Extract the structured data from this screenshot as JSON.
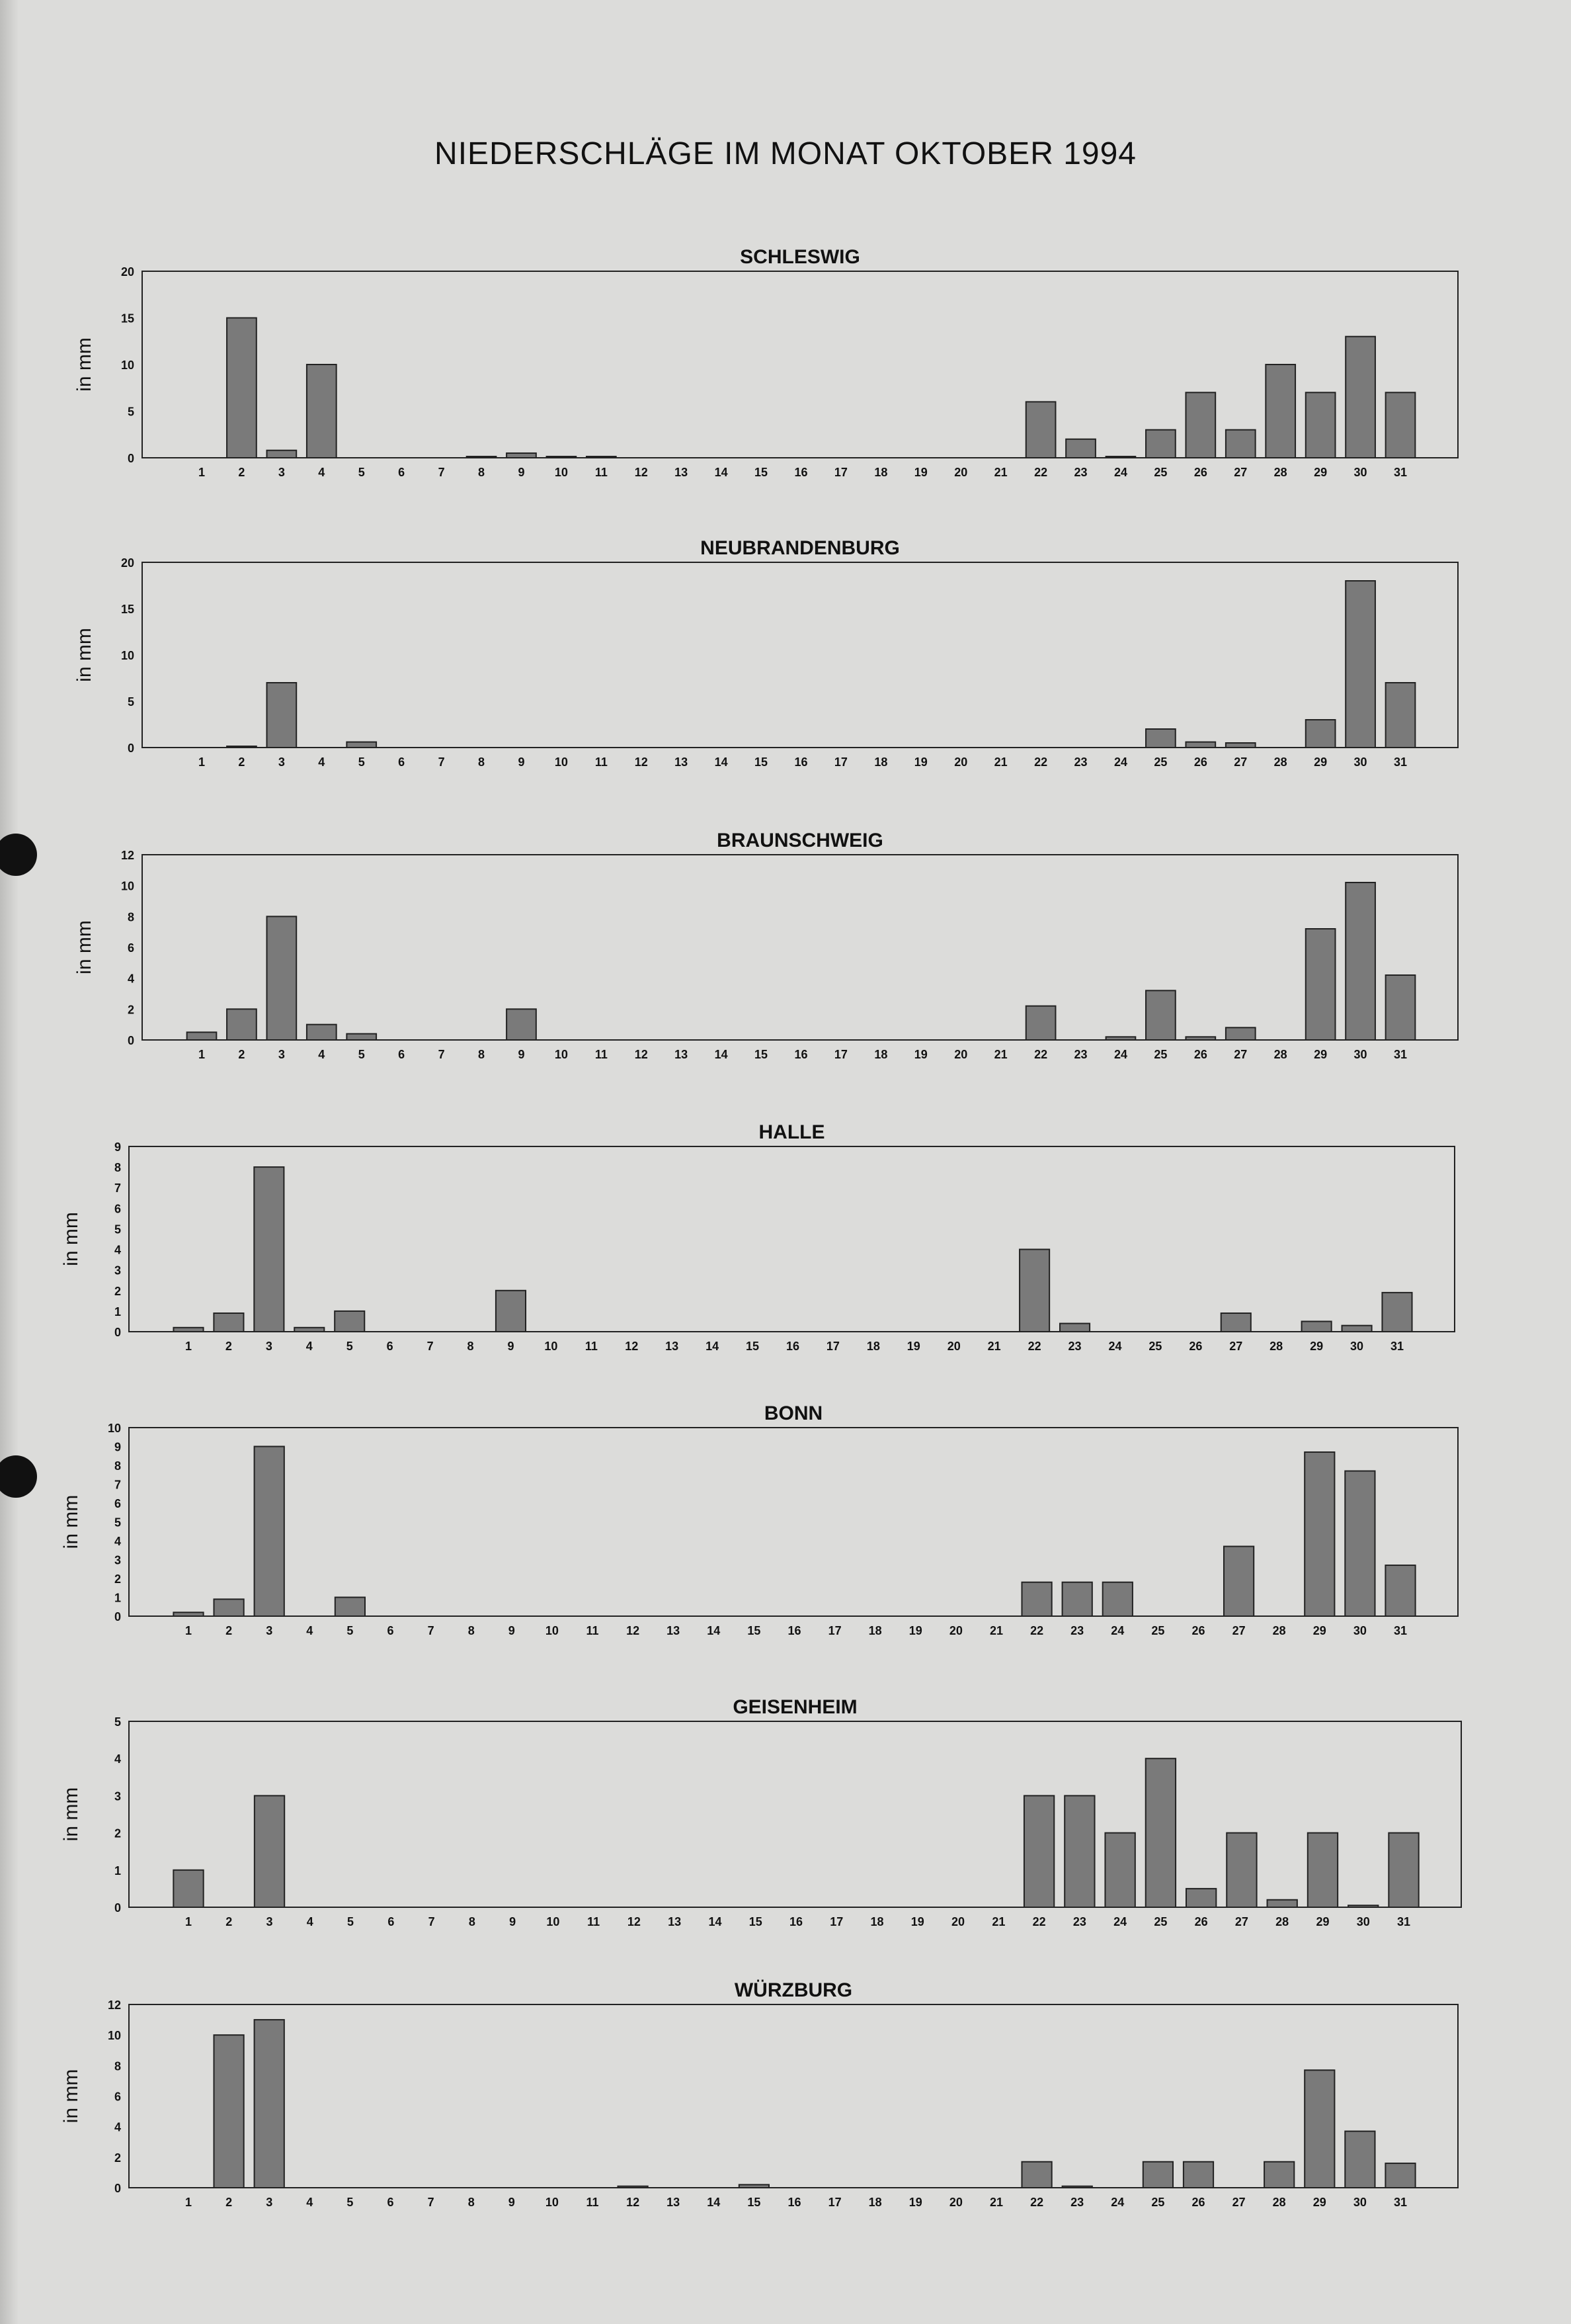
{
  "title": "NIEDERSCHLÄGE IM MONAT OKTOBER 1994",
  "bar_color": "#7a7a7a",
  "chart_data": [
    {
      "type": "bar",
      "title": "SCHLESWIG",
      "ylabel": "in mm",
      "ylim": [
        0,
        20
      ],
      "yticks": [
        0,
        5,
        10,
        15,
        20
      ],
      "categories": [
        "1",
        "2",
        "3",
        "4",
        "5",
        "6",
        "7",
        "8",
        "9",
        "10",
        "11",
        "12",
        "13",
        "14",
        "15",
        "16",
        "17",
        "18",
        "19",
        "20",
        "21",
        "22",
        "23",
        "24",
        "25",
        "26",
        "27",
        "28",
        "29",
        "30",
        "31"
      ],
      "values": [
        0,
        15,
        0.8,
        10,
        0,
        0,
        0,
        0.1,
        0.5,
        0.1,
        0.1,
        0,
        0,
        0,
        0,
        0,
        0,
        0,
        0,
        0,
        0,
        6,
        2,
        0.1,
        3,
        7,
        3,
        10,
        7,
        13,
        7
      ]
    },
    {
      "type": "bar",
      "title": "NEUBRANDENBURG",
      "ylabel": "in mm",
      "ylim": [
        0,
        20
      ],
      "yticks": [
        0,
        5,
        10,
        15,
        20
      ],
      "categories": [
        "1",
        "2",
        "3",
        "4",
        "5",
        "6",
        "7",
        "8",
        "9",
        "10",
        "11",
        "12",
        "13",
        "14",
        "15",
        "16",
        "17",
        "18",
        "19",
        "20",
        "21",
        "22",
        "23",
        "24",
        "25",
        "26",
        "27",
        "28",
        "29",
        "30",
        "31"
      ],
      "values": [
        0,
        0.1,
        7,
        0,
        0.6,
        0,
        0,
        0,
        0,
        0,
        0,
        0,
        0,
        0,
        0,
        0,
        0,
        0,
        0,
        0,
        0,
        0,
        0,
        0,
        2,
        0.6,
        0.5,
        0,
        3,
        18,
        7
      ]
    },
    {
      "type": "bar",
      "title": "BRAUNSCHWEIG",
      "ylabel": "in mm",
      "ylim": [
        0,
        12
      ],
      "yticks": [
        0,
        2,
        4,
        6,
        8,
        10,
        12
      ],
      "categories": [
        "1",
        "2",
        "3",
        "4",
        "5",
        "6",
        "7",
        "8",
        "9",
        "10",
        "11",
        "12",
        "13",
        "14",
        "15",
        "16",
        "17",
        "18",
        "19",
        "20",
        "21",
        "22",
        "23",
        "24",
        "25",
        "26",
        "27",
        "28",
        "29",
        "30",
        "31"
      ],
      "values": [
        0.5,
        2,
        8,
        1,
        0.4,
        0,
        0,
        0,
        2,
        0,
        0,
        0,
        0,
        0,
        0,
        0,
        0,
        0,
        0,
        0,
        0,
        2.2,
        0,
        0.2,
        3.2,
        0.2,
        0.8,
        0,
        7.2,
        10.2,
        4.2
      ]
    },
    {
      "type": "bar",
      "title": "HALLE",
      "ylabel": "in mm",
      "ylim": [
        0,
        9
      ],
      "yticks": [
        0,
        1,
        2,
        3,
        4,
        5,
        6,
        7,
        8,
        9
      ],
      "categories": [
        "1",
        "2",
        "3",
        "4",
        "5",
        "6",
        "7",
        "8",
        "9",
        "10",
        "11",
        "12",
        "13",
        "14",
        "15",
        "16",
        "17",
        "18",
        "19",
        "20",
        "21",
        "22",
        "23",
        "24",
        "25",
        "26",
        "27",
        "28",
        "29",
        "30",
        "31"
      ],
      "values": [
        0.2,
        0.9,
        8,
        0.2,
        1,
        0,
        0,
        0,
        2,
        0,
        0,
        0,
        0,
        0,
        0,
        0,
        0,
        0,
        0,
        0,
        0,
        4,
        0.4,
        0,
        0,
        0,
        0.9,
        0,
        0.5,
        0.3,
        1.9
      ]
    },
    {
      "type": "bar",
      "title": "BONN",
      "ylabel": "in mm",
      "ylim": [
        0,
        10
      ],
      "yticks": [
        0,
        1,
        2,
        3,
        4,
        5,
        6,
        7,
        8,
        9,
        10
      ],
      "categories": [
        "1",
        "2",
        "3",
        "4",
        "5",
        "6",
        "7",
        "8",
        "9",
        "10",
        "11",
        "12",
        "13",
        "14",
        "15",
        "16",
        "17",
        "18",
        "19",
        "20",
        "21",
        "22",
        "23",
        "24",
        "25",
        "26",
        "27",
        "28",
        "29",
        "30",
        "31"
      ],
      "values": [
        0.2,
        0.9,
        9,
        0,
        1,
        0,
        0,
        0,
        0,
        0,
        0,
        0,
        0,
        0,
        0,
        0,
        0,
        0,
        0,
        0,
        0,
        1.8,
        1.8,
        1.8,
        0,
        0,
        3.7,
        0,
        8.7,
        7.7,
        2.7
      ]
    },
    {
      "type": "bar",
      "title": "GEISENHEIM",
      "ylabel": "in mm",
      "ylim": [
        0,
        5
      ],
      "yticks": [
        0,
        1,
        2,
        3,
        4,
        5
      ],
      "categories": [
        "1",
        "2",
        "3",
        "4",
        "5",
        "6",
        "7",
        "8",
        "9",
        "10",
        "11",
        "12",
        "13",
        "14",
        "15",
        "16",
        "17",
        "18",
        "19",
        "20",
        "21",
        "22",
        "23",
        "24",
        "25",
        "26",
        "27",
        "28",
        "29",
        "30",
        "31"
      ],
      "values": [
        1,
        0,
        3,
        0,
        0,
        0,
        0,
        0,
        0,
        0,
        0,
        0,
        0,
        0,
        0,
        0,
        0,
        0,
        0,
        0,
        0,
        3,
        3,
        2,
        4,
        0.5,
        2,
        0.2,
        2,
        0.05,
        2
      ]
    },
    {
      "type": "bar",
      "title": "WÜRZBURG",
      "ylabel": "in mm",
      "ylim": [
        0,
        12
      ],
      "yticks": [
        0,
        2,
        4,
        6,
        8,
        10,
        12
      ],
      "categories": [
        "1",
        "2",
        "3",
        "4",
        "5",
        "6",
        "7",
        "8",
        "9",
        "10",
        "11",
        "12",
        "13",
        "14",
        "15",
        "16",
        "17",
        "18",
        "19",
        "20",
        "21",
        "22",
        "23",
        "24",
        "25",
        "26",
        "27",
        "28",
        "29",
        "30",
        "31"
      ],
      "values": [
        0,
        10,
        11,
        0,
        0,
        0,
        0,
        0,
        0,
        0,
        0,
        0.1,
        0,
        0,
        0.2,
        0,
        0,
        0,
        0,
        0,
        0,
        1.7,
        0.1,
        0,
        1.7,
        1.7,
        0,
        1.7,
        7.7,
        3.7,
        1.6
      ]
    }
  ]
}
